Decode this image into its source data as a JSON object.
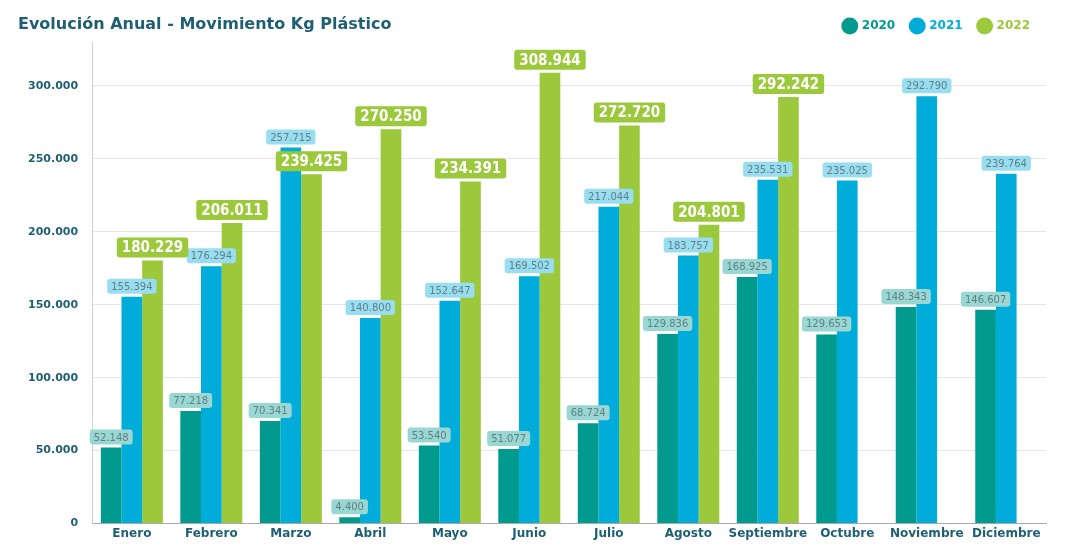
{
  "chart_data": {
    "type": "bar",
    "title": "Evolución Anual - Movimiento Kg Plástico",
    "categories": [
      "Enero",
      "Febrero",
      "Marzo",
      "Abril",
      "Mayo",
      "Junio",
      "Julio",
      "Agosto",
      "Septiembre",
      "Octubre",
      "Noviembre",
      "Diciembre"
    ],
    "series": [
      {
        "name": "2020",
        "color": "#009a8f",
        "values": [
          52148,
          77218,
          70341,
          4400,
          53540,
          51077,
          68724,
          129836,
          168925,
          129653,
          148343,
          146607
        ],
        "value_labels": [
          "52.148",
          "77.218",
          "70.341",
          "4.400",
          "53.540",
          "51.077",
          "68.724",
          "129.836",
          "168.925",
          "129.653",
          "148.343",
          "146.607"
        ]
      },
      {
        "name": "2021",
        "color": "#00acd9",
        "values": [
          155394,
          176294,
          257715,
          140800,
          152647,
          169502,
          217044,
          183757,
          235531,
          235025,
          292790,
          239764
        ],
        "value_labels": [
          "155.394",
          "176.294",
          "257.715",
          "140.800",
          "152.647",
          "169.502",
          "217.044",
          "183.757",
          "235.531",
          "235.025",
          "292.790",
          "239.764"
        ]
      },
      {
        "name": "2022",
        "color": "#9bc93b",
        "values": [
          180229,
          206011,
          239425,
          270250,
          234391,
          308944,
          272720,
          204801,
          292242,
          null,
          null,
          null
        ],
        "value_labels": [
          "180.229",
          "206.011",
          "239.425",
          "270.250",
          "234.391",
          "308.944",
          "272.720",
          "204.801",
          "292.242",
          null,
          null,
          null
        ]
      }
    ],
    "ylim": [
      0,
      330000
    ],
    "yticks": [
      {
        "value": 0,
        "label": "0"
      },
      {
        "value": 50000,
        "label": "50.000"
      },
      {
        "value": 100000,
        "label": "100.000"
      },
      {
        "value": 150000,
        "label": "150.000"
      },
      {
        "value": 200000,
        "label": "200.000"
      },
      {
        "value": 250000,
        "label": "250.000"
      },
      {
        "value": 300000,
        "label": "300.000"
      }
    ],
    "grid": "y",
    "legend": "top right"
  }
}
